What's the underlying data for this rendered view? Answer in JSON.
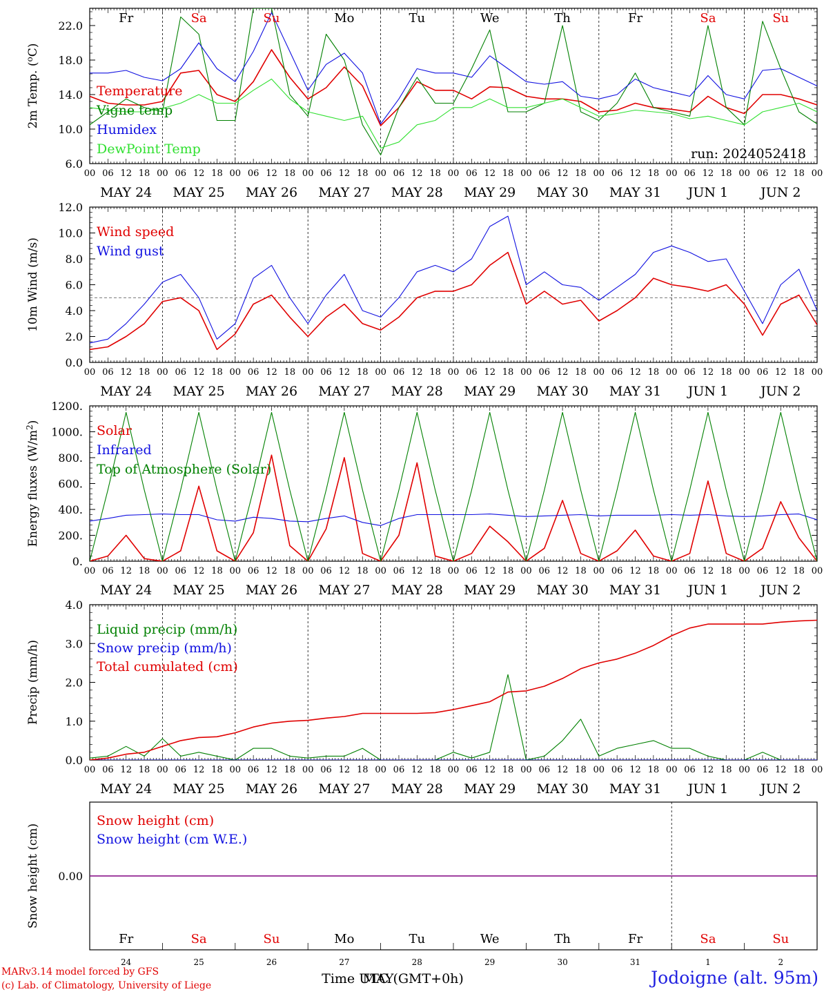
{
  "days": [
    {
      "day": "Fr",
      "date": "MAY 24",
      "num": "24",
      "weekend": false
    },
    {
      "day": "Sa",
      "date": "MAY 25",
      "num": "25",
      "weekend": true
    },
    {
      "day": "Su",
      "date": "MAY 26",
      "num": "26",
      "weekend": true
    },
    {
      "day": "Mo",
      "date": "MAY 27",
      "num": "27",
      "weekend": false
    },
    {
      "day": "Tu",
      "date": "MAY 28",
      "num": "28",
      "weekend": false
    },
    {
      "day": "We",
      "date": "MAY 29",
      "num": "29",
      "weekend": false
    },
    {
      "day": "Th",
      "date": "MAY 30",
      "num": "30",
      "weekend": false
    },
    {
      "day": "Fr",
      "date": "MAY 31",
      "num": "31",
      "weekend": false
    },
    {
      "day": "Sa",
      "date": "JUN  1",
      "num": "1",
      "weekend": true
    },
    {
      "day": "Su",
      "date": "JUN  2",
      "num": "2",
      "weekend": true
    }
  ],
  "hour_ticks": [
    "00",
    "06",
    "12",
    "18"
  ],
  "run_label": "run: 2024052418",
  "x_title": "Time UTC (GMT+0h)",
  "x_title_overlap": "MAY",
  "credits": [
    "MARv3.14 model forced by GFS",
    "(c) Lab. of Climatology, University of Liege"
  ],
  "station": "Jodoigne (alt. 95m)",
  "colors": {
    "red": "#e00000",
    "green": "#008000",
    "blue": "#1010e0",
    "lightgreen": "#30e030",
    "purple": "#800080",
    "weekend": "#e00000"
  },
  "chart_data": [
    {
      "type": "line",
      "ylabel": "2m Temp. (oC)",
      "ylim": [
        6,
        24
      ],
      "yticks": [
        "6.0",
        "10.0",
        "14.0",
        "18.0",
        "22.0"
      ],
      "x_hours": [
        0,
        6,
        12,
        18,
        24,
        30,
        36,
        42,
        48,
        54,
        60,
        66,
        72,
        78,
        84,
        90,
        96,
        102,
        108,
        114,
        120,
        126,
        132,
        138,
        144,
        150,
        156,
        162,
        168,
        174,
        180,
        186,
        192,
        198,
        204,
        210,
        216,
        222,
        228,
        234,
        240
      ],
      "series": [
        {
          "name": "Temperature",
          "color": "red",
          "values": [
            13.8,
            13.0,
            12.8,
            12.8,
            13.2,
            16.5,
            16.8,
            14.0,
            13.2,
            15.5,
            19.2,
            16.0,
            13.5,
            14.8,
            17.2,
            15.0,
            10.4,
            12.5,
            15.5,
            14.5,
            14.5,
            13.5,
            14.9,
            14.8,
            13.8,
            13.5,
            13.5,
            13.2,
            12.0,
            12.2,
            13.0,
            12.5,
            12.3,
            12.0,
            13.8,
            12.5,
            11.8,
            14.0,
            14.0,
            13.5,
            12.8
          ]
        },
        {
          "name": "Vigne temp",
          "color": "green",
          "values": [
            10.5,
            12.0,
            13.5,
            12.5,
            12.0,
            23.0,
            21.0,
            11.0,
            11.0,
            24.0,
            24.0,
            14.0,
            11.5,
            21.0,
            18.0,
            10.5,
            7.0,
            12.5,
            16.0,
            13.0,
            13.0,
            17.0,
            21.5,
            12.0,
            12.0,
            13.0,
            22.0,
            12.0,
            11.0,
            13.0,
            16.5,
            12.5,
            12.0,
            11.5,
            22.0,
            12.5,
            10.5,
            22.5,
            17.0,
            12.0,
            10.6
          ]
        },
        {
          "name": "Humidex",
          "color": "blue",
          "values": [
            16.5,
            16.5,
            16.8,
            16.0,
            15.6,
            17.0,
            20.0,
            17.0,
            15.5,
            19.0,
            23.5,
            19.0,
            14.5,
            17.5,
            18.8,
            16.5,
            10.6,
            13.5,
            17.0,
            16.5,
            16.5,
            16.0,
            18.5,
            17.0,
            15.5,
            15.2,
            15.5,
            13.8,
            13.5,
            14.0,
            15.8,
            14.8,
            14.3,
            13.8,
            16.2,
            14.0,
            13.5,
            16.8,
            17.0,
            16.0,
            15.0
          ]
        },
        {
          "name": "DewPoint Temp",
          "color": "lightgreen",
          "values": [
            12.5,
            12.2,
            12.0,
            12.0,
            12.4,
            13.0,
            14.0,
            13.0,
            13.0,
            14.5,
            15.8,
            13.5,
            12.0,
            11.5,
            11.0,
            11.5,
            7.8,
            8.5,
            10.5,
            11.0,
            12.5,
            12.5,
            13.5,
            12.5,
            12.5,
            13.0,
            13.5,
            12.5,
            11.5,
            11.8,
            12.2,
            12.0,
            11.8,
            11.2,
            11.5,
            11.0,
            10.5,
            12.0,
            12.5,
            13.0,
            12.0
          ]
        }
      ]
    },
    {
      "type": "line",
      "ylabel": "10m Wind (m/s)",
      "ylim": [
        0,
        12
      ],
      "yticks": [
        "0.0",
        "2.0",
        "4.0",
        "6.0",
        "8.0",
        "10.0",
        "12.0"
      ],
      "reference_line": 5,
      "x_hours": [
        0,
        6,
        12,
        18,
        24,
        30,
        36,
        42,
        48,
        54,
        60,
        66,
        72,
        78,
        84,
        90,
        96,
        102,
        108,
        114,
        120,
        126,
        132,
        138,
        144,
        150,
        156,
        162,
        168,
        174,
        180,
        186,
        192,
        198,
        204,
        210,
        216,
        222,
        228,
        234,
        240
      ],
      "series": [
        {
          "name": "Wind speed",
          "color": "red",
          "values": [
            1.0,
            1.2,
            2.0,
            3.0,
            4.7,
            5.0,
            4.0,
            1.0,
            2.2,
            4.5,
            5.2,
            3.5,
            2.0,
            3.5,
            4.5,
            3.0,
            2.5,
            3.5,
            5.0,
            5.5,
            5.5,
            6.0,
            7.5,
            8.5,
            4.5,
            5.5,
            4.5,
            4.8,
            3.2,
            4.0,
            5.0,
            6.5,
            6.0,
            5.8,
            5.5,
            6.0,
            4.5,
            2.1,
            4.5,
            5.2,
            2.9
          ]
        },
        {
          "name": "Wind gust",
          "color": "blue",
          "values": [
            1.5,
            1.8,
            3.0,
            4.5,
            6.2,
            6.8,
            5.0,
            1.8,
            3.0,
            6.5,
            7.5,
            5.0,
            3.0,
            5.2,
            6.8,
            4.0,
            3.5,
            5.0,
            7.0,
            7.5,
            7.0,
            8.0,
            10.5,
            11.3,
            6.0,
            7.0,
            6.0,
            5.8,
            4.8,
            5.8,
            6.8,
            8.5,
            9.0,
            8.5,
            7.8,
            8.0,
            5.5,
            3.0,
            6.0,
            7.2,
            4.0
          ]
        }
      ]
    },
    {
      "type": "line",
      "ylabel": "Energy fluxes (W/m2)",
      "ylim": [
        0,
        1200
      ],
      "yticks": [
        "0.",
        "200.",
        "400.",
        "600.",
        "800.",
        "1000.",
        "1200."
      ],
      "x_hours": [
        0,
        6,
        12,
        18,
        24,
        30,
        36,
        42,
        48,
        54,
        60,
        66,
        72,
        78,
        84,
        90,
        96,
        102,
        108,
        114,
        120,
        126,
        132,
        138,
        144,
        150,
        156,
        162,
        168,
        174,
        180,
        186,
        192,
        198,
        204,
        210,
        216,
        222,
        228,
        234,
        240
      ],
      "series": [
        {
          "name": "Solar",
          "color": "red",
          "values": [
            0,
            40,
            200,
            20,
            0,
            80,
            580,
            80,
            0,
            220,
            820,
            120,
            0,
            250,
            800,
            60,
            0,
            200,
            760,
            40,
            0,
            60,
            270,
            150,
            0,
            100,
            470,
            60,
            0,
            80,
            240,
            40,
            0,
            60,
            620,
            60,
            0,
            100,
            460,
            180,
            0
          ]
        },
        {
          "name": "Infrared",
          "color": "blue",
          "values": [
            310,
            330,
            355,
            360,
            365,
            360,
            360,
            320,
            310,
            340,
            330,
            310,
            305,
            330,
            350,
            300,
            275,
            330,
            360,
            360,
            360,
            360,
            365,
            355,
            345,
            350,
            355,
            360,
            350,
            355,
            355,
            355,
            360,
            355,
            360,
            350,
            345,
            350,
            360,
            365,
            320
          ]
        },
        {
          "name": "Top of Atmosphere (Solar)",
          "color": "green",
          "values": [
            0,
            550,
            1150,
            550,
            0,
            550,
            1150,
            550,
            0,
            550,
            1150,
            550,
            0,
            550,
            1150,
            550,
            0,
            550,
            1150,
            550,
            0,
            550,
            1150,
            550,
            0,
            550,
            1150,
            550,
            0,
            550,
            1150,
            550,
            0,
            550,
            1150,
            550,
            0,
            550,
            1150,
            550,
            0
          ]
        }
      ]
    },
    {
      "type": "line",
      "ylabel": "Precip (mm/h)",
      "ylim": [
        0,
        4
      ],
      "yticks": [
        "0.0",
        "1.0",
        "2.0",
        "3.0",
        "4.0"
      ],
      "x_hours": [
        0,
        6,
        12,
        18,
        24,
        30,
        36,
        42,
        48,
        54,
        60,
        66,
        72,
        78,
        84,
        90,
        96,
        102,
        108,
        114,
        120,
        126,
        132,
        138,
        144,
        150,
        156,
        162,
        168,
        174,
        180,
        186,
        192,
        198,
        204,
        210,
        216,
        222,
        228,
        234,
        240
      ],
      "series": [
        {
          "name": "Liquid precip (mm/h)",
          "color": "green",
          "values": [
            0.05,
            0.1,
            0.35,
            0.1,
            0.55,
            0.1,
            0.2,
            0.1,
            0.0,
            0.3,
            0.3,
            0.1,
            0.05,
            0.1,
            0.1,
            0.3,
            0.0,
            0.0,
            0.0,
            0.0,
            0.2,
            0.05,
            0.2,
            2.2,
            0.0,
            0.1,
            0.5,
            1.05,
            0.1,
            0.3,
            0.4,
            0.5,
            0.3,
            0.3,
            0.1,
            0.0,
            0.0,
            0.2,
            0.0,
            0.0,
            0.0
          ]
        },
        {
          "name": "Snow precip (mm/h)",
          "color": "blue",
          "values": [
            0,
            0,
            0,
            0,
            0,
            0,
            0,
            0,
            0,
            0,
            0,
            0,
            0,
            0,
            0,
            0,
            0,
            0,
            0,
            0,
            0,
            0,
            0,
            0,
            0,
            0,
            0,
            0,
            0,
            0,
            0,
            0,
            0,
            0,
            0,
            0,
            0,
            0,
            0,
            0,
            0
          ]
        },
        {
          "name": "Total cumulated (cm)",
          "color": "red",
          "values": [
            0.0,
            0.05,
            0.15,
            0.2,
            0.35,
            0.5,
            0.58,
            0.6,
            0.7,
            0.85,
            0.95,
            1.0,
            1.02,
            1.08,
            1.12,
            1.2,
            1.2,
            1.2,
            1.2,
            1.22,
            1.3,
            1.4,
            1.5,
            1.75,
            1.78,
            1.9,
            2.1,
            2.35,
            2.5,
            2.6,
            2.75,
            2.95,
            3.2,
            3.4,
            3.5,
            3.5,
            3.5,
            3.5,
            3.55,
            3.58,
            3.6
          ]
        }
      ]
    },
    {
      "type": "line",
      "ylabel": "Snow height (cm)",
      "ylim": [
        -1,
        1
      ],
      "yticks": [
        "0.00"
      ],
      "x_hours": [
        0,
        240
      ],
      "series": [
        {
          "name": "Snow height (cm)",
          "color": "red",
          "values": [
            0,
            0
          ]
        },
        {
          "name": "Snow height (cm W.E.)",
          "color": "blue",
          "values": [
            0,
            0
          ]
        }
      ]
    }
  ]
}
